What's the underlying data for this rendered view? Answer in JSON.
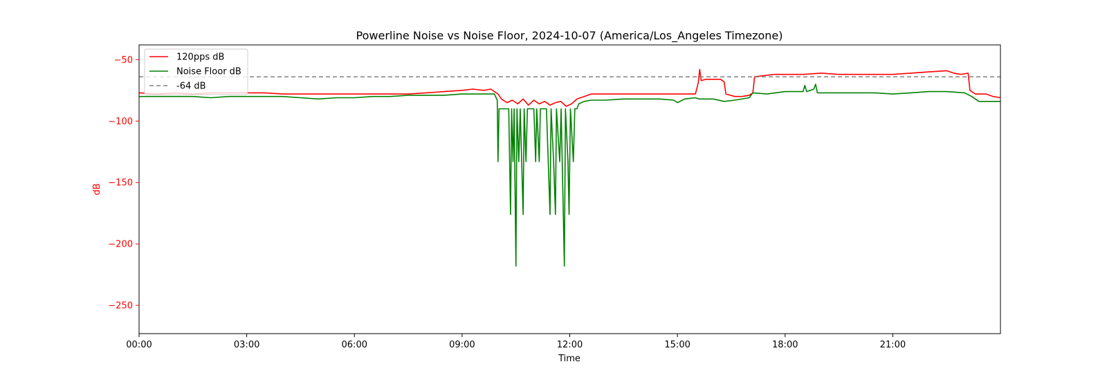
{
  "chart_data": {
    "type": "line",
    "title": "Powerline Noise vs Noise Floor, 2024-10-07 (America/Los_Angeles Timezone)",
    "xlabel": "Time",
    "ylabel": "dB",
    "x_range_hours": [
      0,
      24
    ],
    "ylim": [
      -273,
      -38
    ],
    "xticks": [
      {
        "value": 0,
        "label": "00:00"
      },
      {
        "value": 3,
        "label": "03:00"
      },
      {
        "value": 6,
        "label": "06:00"
      },
      {
        "value": 9,
        "label": "09:00"
      },
      {
        "value": 12,
        "label": "12:00"
      },
      {
        "value": 15,
        "label": "15:00"
      },
      {
        "value": 18,
        "label": "18:00"
      },
      {
        "value": 21,
        "label": "21:00"
      }
    ],
    "yticks": [
      {
        "value": -50,
        "label": "−50"
      },
      {
        "value": -100,
        "label": "−100"
      },
      {
        "value": -150,
        "label": "−150"
      },
      {
        "value": -200,
        "label": "−200"
      },
      {
        "value": -250,
        "label": "−250"
      }
    ],
    "grid": false,
    "legend_position": "top-left",
    "ylabel_color": "#ff0000",
    "series": [
      {
        "name": "120pps dB",
        "color": "#ff0000",
        "style": "solid",
        "points": [
          [
            0.0,
            -77
          ],
          [
            0.5,
            -78
          ],
          [
            1.0,
            -77
          ],
          [
            1.5,
            -78
          ],
          [
            2.0,
            -77
          ],
          [
            2.5,
            -77
          ],
          [
            3.0,
            -77
          ],
          [
            3.5,
            -77
          ],
          [
            4.0,
            -78
          ],
          [
            4.5,
            -78
          ],
          [
            5.0,
            -78
          ],
          [
            5.5,
            -78
          ],
          [
            6.0,
            -78
          ],
          [
            6.5,
            -78
          ],
          [
            7.0,
            -78
          ],
          [
            7.5,
            -78
          ],
          [
            8.0,
            -77
          ],
          [
            8.5,
            -76
          ],
          [
            9.0,
            -75
          ],
          [
            9.3,
            -74
          ],
          [
            9.6,
            -75
          ],
          [
            9.8,
            -74
          ],
          [
            10.0,
            -78
          ],
          [
            10.1,
            -82
          ],
          [
            10.25,
            -85
          ],
          [
            10.4,
            -83
          ],
          [
            10.55,
            -86
          ],
          [
            10.7,
            -82
          ],
          [
            10.85,
            -87
          ],
          [
            11.0,
            -83
          ],
          [
            11.15,
            -86
          ],
          [
            11.3,
            -84
          ],
          [
            11.45,
            -87
          ],
          [
            11.6,
            -85
          ],
          [
            11.75,
            -84
          ],
          [
            11.9,
            -88
          ],
          [
            12.05,
            -86
          ],
          [
            12.2,
            -82
          ],
          [
            12.4,
            -80
          ],
          [
            12.6,
            -78
          ],
          [
            13.0,
            -78
          ],
          [
            13.5,
            -78
          ],
          [
            14.0,
            -78
          ],
          [
            14.5,
            -78
          ],
          [
            15.0,
            -78
          ],
          [
            15.3,
            -78
          ],
          [
            15.5,
            -78
          ],
          [
            15.58,
            -69
          ],
          [
            15.62,
            -58
          ],
          [
            15.66,
            -67
          ],
          [
            15.8,
            -66
          ],
          [
            16.0,
            -66
          ],
          [
            16.2,
            -66
          ],
          [
            16.3,
            -68
          ],
          [
            16.35,
            -78
          ],
          [
            16.6,
            -80
          ],
          [
            16.8,
            -80
          ],
          [
            17.0,
            -79
          ],
          [
            17.1,
            -77
          ],
          [
            17.15,
            -64
          ],
          [
            17.4,
            -63
          ],
          [
            17.7,
            -62
          ],
          [
            18.0,
            -62
          ],
          [
            18.5,
            -62
          ],
          [
            19.0,
            -61
          ],
          [
            19.5,
            -62
          ],
          [
            20.0,
            -62
          ],
          [
            20.5,
            -62
          ],
          [
            21.0,
            -62
          ],
          [
            21.5,
            -61
          ],
          [
            22.0,
            -60
          ],
          [
            22.5,
            -59
          ],
          [
            22.7,
            -61
          ],
          [
            22.9,
            -62
          ],
          [
            23.1,
            -61
          ],
          [
            23.15,
            -75
          ],
          [
            23.3,
            -78
          ],
          [
            23.6,
            -78
          ],
          [
            23.8,
            -80
          ],
          [
            24.0,
            -81
          ]
        ]
      },
      {
        "name": "Noise Floor dB",
        "color": "#008000",
        "style": "solid",
        "points": [
          [
            0.0,
            -80
          ],
          [
            0.5,
            -80
          ],
          [
            1.0,
            -80
          ],
          [
            1.5,
            -80
          ],
          [
            2.0,
            -81
          ],
          [
            2.5,
            -80
          ],
          [
            3.0,
            -80
          ],
          [
            3.5,
            -80
          ],
          [
            4.0,
            -80
          ],
          [
            4.5,
            -81
          ],
          [
            5.0,
            -82
          ],
          [
            5.5,
            -81
          ],
          [
            6.0,
            -81
          ],
          [
            6.5,
            -80
          ],
          [
            7.0,
            -80
          ],
          [
            7.5,
            -79
          ],
          [
            8.0,
            -79
          ],
          [
            8.5,
            -79
          ],
          [
            9.0,
            -78
          ],
          [
            9.5,
            -78
          ],
          [
            9.9,
            -78
          ],
          [
            9.98,
            -83
          ],
          [
            10.0,
            -133
          ],
          [
            10.03,
            -90
          ],
          [
            10.3,
            -90
          ],
          [
            10.35,
            -176
          ],
          [
            10.38,
            -90
          ],
          [
            10.42,
            -133
          ],
          [
            10.45,
            -90
          ],
          [
            10.5,
            -218
          ],
          [
            10.53,
            -90
          ],
          [
            10.58,
            -133
          ],
          [
            10.62,
            -90
          ],
          [
            10.7,
            -176
          ],
          [
            10.73,
            -90
          ],
          [
            10.78,
            -133
          ],
          [
            10.82,
            -90
          ],
          [
            11.0,
            -90
          ],
          [
            11.05,
            -133
          ],
          [
            11.08,
            -90
          ],
          [
            11.15,
            -133
          ],
          [
            11.18,
            -90
          ],
          [
            11.35,
            -90
          ],
          [
            11.4,
            -133
          ],
          [
            11.45,
            -176
          ],
          [
            11.48,
            -90
          ],
          [
            11.55,
            -133
          ],
          [
            11.6,
            -176
          ],
          [
            11.63,
            -90
          ],
          [
            11.72,
            -133
          ],
          [
            11.76,
            -90
          ],
          [
            11.82,
            -176
          ],
          [
            11.85,
            -218
          ],
          [
            11.88,
            -90
          ],
          [
            11.95,
            -133
          ],
          [
            11.98,
            -176
          ],
          [
            12.02,
            -90
          ],
          [
            12.1,
            -133
          ],
          [
            12.14,
            -90
          ],
          [
            12.2,
            -90
          ],
          [
            12.25,
            -86
          ],
          [
            12.4,
            -84
          ],
          [
            12.6,
            -83
          ],
          [
            13.0,
            -83
          ],
          [
            13.5,
            -82
          ],
          [
            14.0,
            -82
          ],
          [
            14.5,
            -82
          ],
          [
            14.9,
            -83
          ],
          [
            15.0,
            -85
          ],
          [
            15.2,
            -82
          ],
          [
            15.5,
            -81
          ],
          [
            15.6,
            -82
          ],
          [
            16.0,
            -82
          ],
          [
            16.3,
            -84
          ],
          [
            16.6,
            -83
          ],
          [
            17.0,
            -81
          ],
          [
            17.1,
            -77
          ],
          [
            17.5,
            -78
          ],
          [
            18.0,
            -76
          ],
          [
            18.5,
            -76
          ],
          [
            18.55,
            -71
          ],
          [
            18.6,
            -76
          ],
          [
            18.8,
            -74
          ],
          [
            18.85,
            -70
          ],
          [
            18.9,
            -77
          ],
          [
            19.5,
            -77
          ],
          [
            20.0,
            -77
          ],
          [
            20.5,
            -77
          ],
          [
            21.0,
            -78
          ],
          [
            21.5,
            -77
          ],
          [
            22.0,
            -76
          ],
          [
            22.5,
            -76
          ],
          [
            23.0,
            -77
          ],
          [
            23.2,
            -80
          ],
          [
            23.4,
            -84
          ],
          [
            24.0,
            -84
          ]
        ]
      },
      {
        "name": "-64 dB",
        "color": "#808080",
        "style": "dashed",
        "points": [
          [
            0,
            -64
          ],
          [
            24,
            -64
          ]
        ]
      }
    ]
  }
}
